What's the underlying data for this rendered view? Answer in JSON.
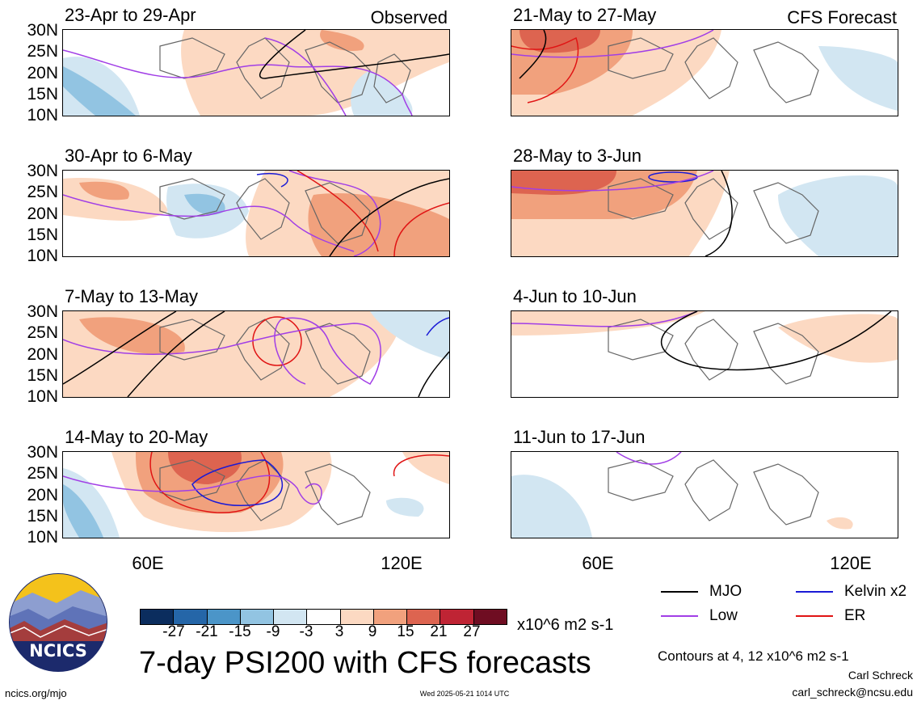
{
  "lat_labels": [
    "30N",
    "25N",
    "20N",
    "15N",
    "10N"
  ],
  "lon_labels": [
    "60E",
    "120E"
  ],
  "observed_tag": "Observed",
  "forecast_tag": "CFS Forecast",
  "panels": [
    {
      "title": "23-Apr to 29-Apr"
    },
    {
      "title": "30-Apr to 6-May"
    },
    {
      "title": "7-May to 13-May"
    },
    {
      "title": "14-May to 20-May"
    },
    {
      "title": "21-May to 27-May"
    },
    {
      "title": "28-May to 3-Jun"
    },
    {
      "title": "4-Jun to 10-Jun"
    },
    {
      "title": "11-Jun to 17-Jun"
    }
  ],
  "colorbar": {
    "ticks": [
      "-27",
      "-21",
      "-15",
      "-9",
      "-3",
      "3",
      "9",
      "15",
      "21",
      "27"
    ],
    "colors": [
      "#0b2d5e",
      "#2566a8",
      "#4b95c8",
      "#92c4e2",
      "#d2e6f2",
      "#ffffff",
      "#fcd9c2",
      "#f1a17d",
      "#dd6450",
      "#bf2434",
      "#6f0d22"
    ],
    "units": "x10^6 m2 s-1"
  },
  "legend": {
    "mjo": {
      "label": "MJO",
      "color": "#000000"
    },
    "kelvin": {
      "label": "Kelvin x2",
      "color": "#1a1ad6"
    },
    "low": {
      "label": "Low",
      "color": "#a13ee6"
    },
    "er": {
      "label": "ER",
      "color": "#e01414"
    }
  },
  "main_title": "7-day PSI200 with CFS forecasts",
  "contours_note": "Contours at 4, 12 x10^6 m2 s-1",
  "author": "Carl Schreck",
  "email": "carl_schreck@ncsu.edu",
  "site": "ncics.org/mjo",
  "timestamp": "Wed 2025-05-21 1014 UTC",
  "logo_text": "NCICS"
}
